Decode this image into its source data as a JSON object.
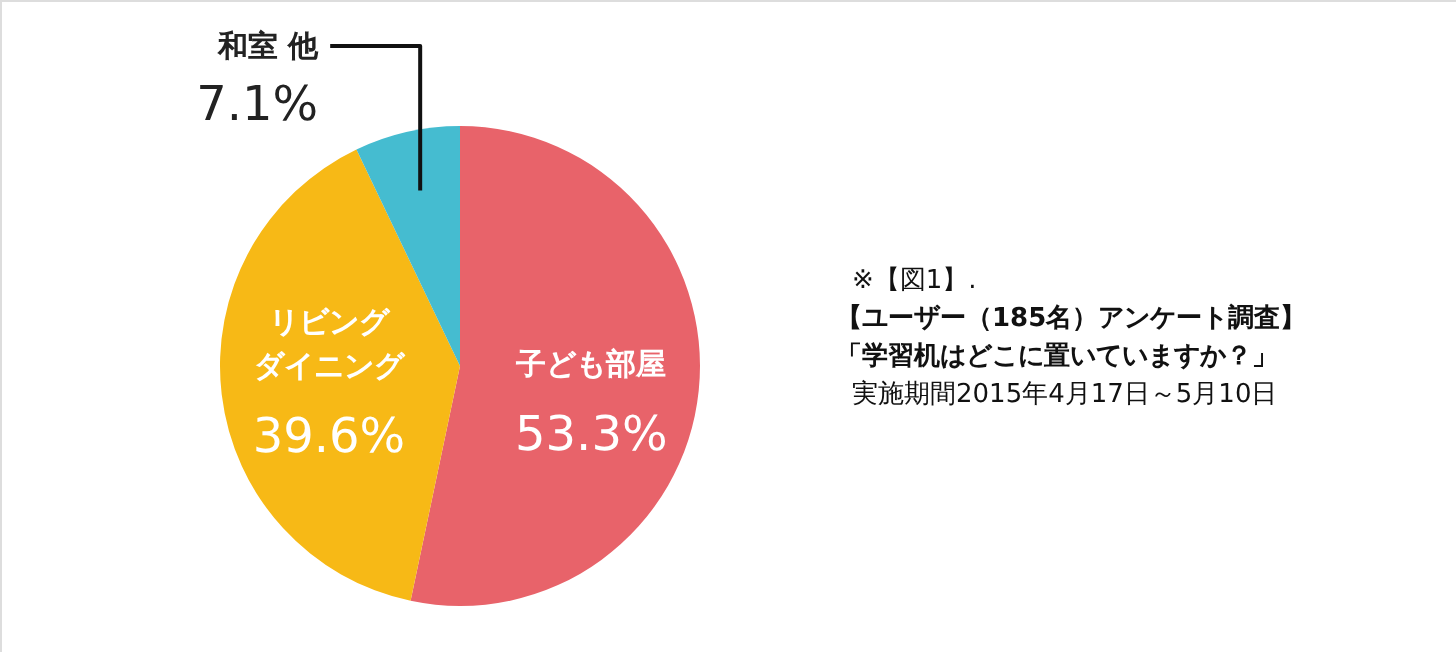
{
  "chart_data": {
    "type": "pie",
    "categories": [
      "子ども部屋",
      "リビングダイニング",
      "和室 他"
    ],
    "values": [
      53.3,
      39.6,
      7.1
    ],
    "colors": [
      "#e8636a",
      "#f7b916",
      "#45bcd0"
    ],
    "value_labels": [
      "53.3%",
      "39.6%",
      "7.1%"
    ],
    "annotations": [
      "※【図1】.",
      "【ユーザー（185名）アンケート調査】",
      "「学習机はどこに置いていますか？」",
      "実施期間2015年4月17日～5月10日"
    ]
  }
}
